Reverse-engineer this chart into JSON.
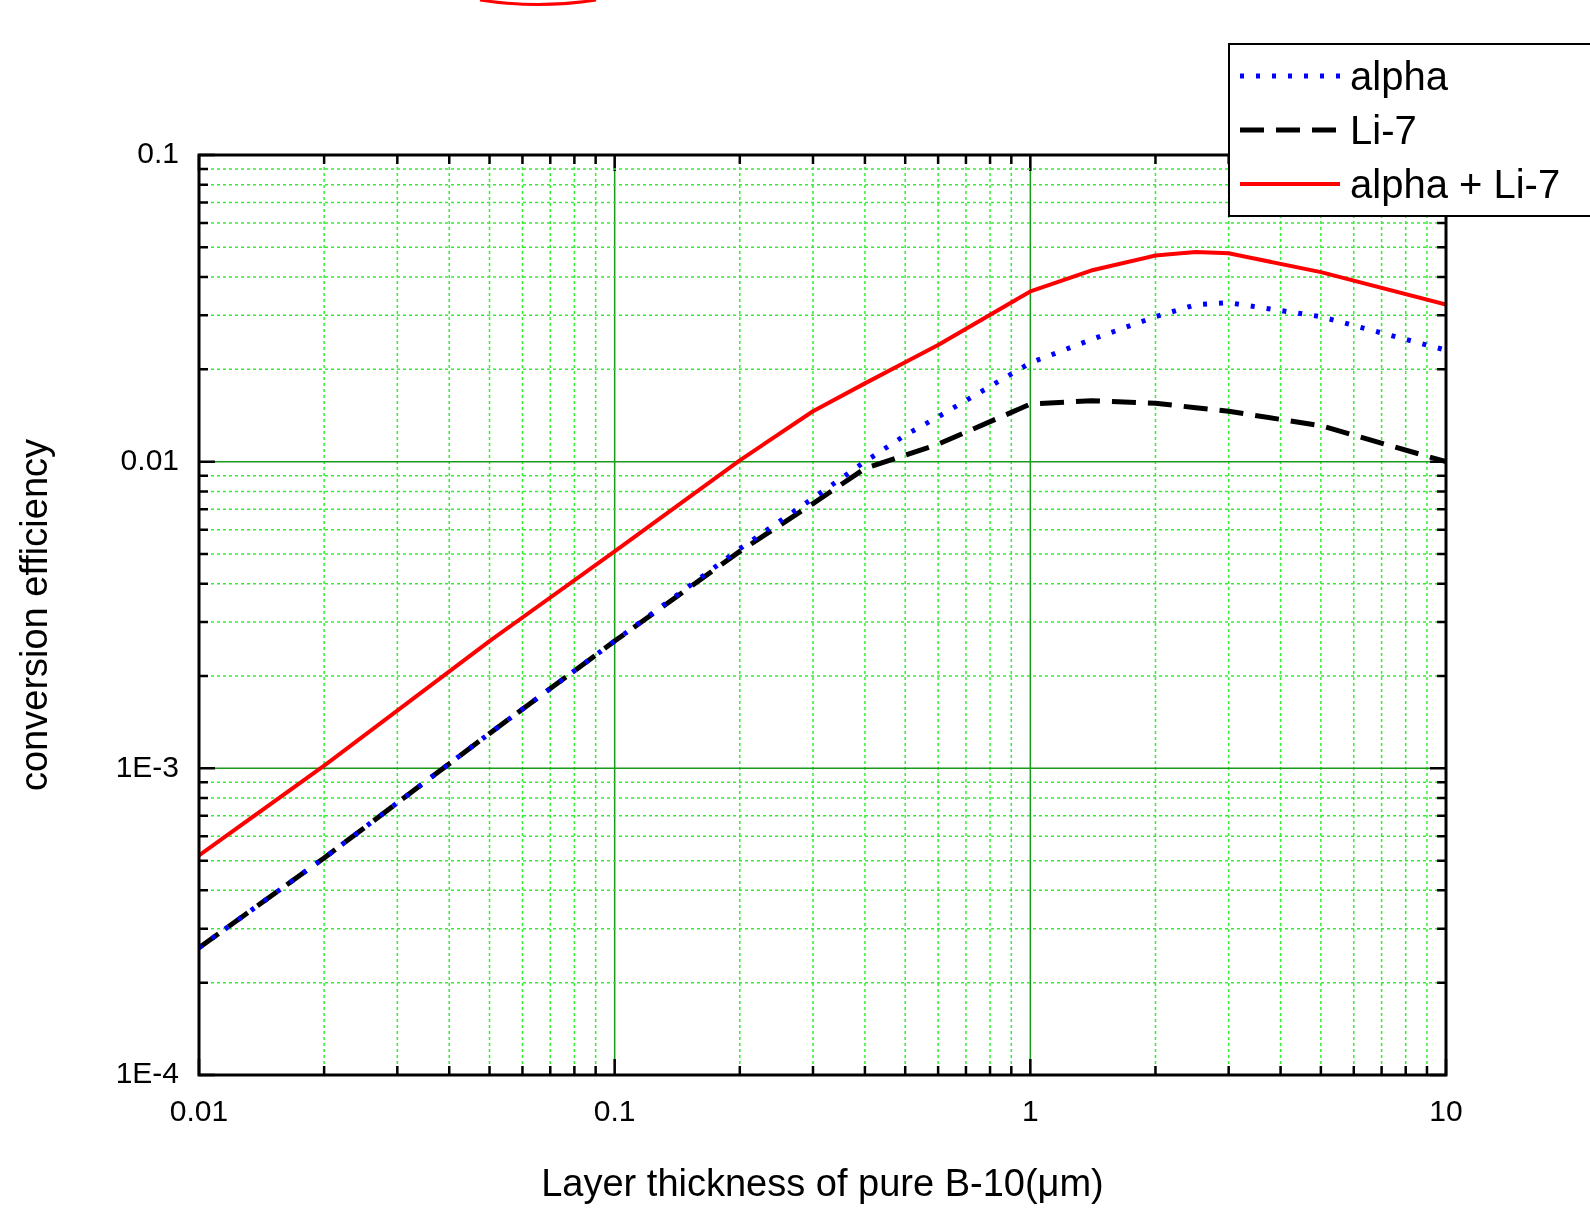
{
  "chart_data": {
    "type": "line",
    "xlabel": "Layer thickness of pure B-10(μm)",
    "ylabel": "conversion efficiency",
    "log": "xy",
    "grid": true,
    "legend": "top right",
    "marker": "none",
    "xlim": [
      0.01,
      10
    ],
    "ylim": [
      0.0001,
      0.1
    ],
    "xticks": [
      0.01,
      {
        "value": 0.02,
        "label": null
      },
      {
        "value": 0.03,
        "label": null
      },
      {
        "value": 0.04,
        "label": null
      },
      {
        "value": 0.05,
        "label": null
      },
      {
        "value": 0.06,
        "label": null
      },
      {
        "value": 0.07,
        "label": null
      },
      {
        "value": 0.08,
        "label": null
      },
      {
        "value": 0.09,
        "label": null
      },
      0.1,
      {
        "value": 0.2,
        "label": null
      },
      {
        "value": 0.3,
        "label": null
      },
      {
        "value": 0.4,
        "label": null
      },
      {
        "value": 0.5,
        "label": null
      },
      {
        "value": 0.6,
        "label": null
      },
      {
        "value": 0.7,
        "label": null
      },
      {
        "value": 0.8,
        "label": null
      },
      {
        "value": 0.9,
        "label": null
      },
      1,
      {
        "value": 2,
        "label": null
      },
      {
        "value": 3,
        "label": null
      },
      {
        "value": 4,
        "label": null
      },
      {
        "value": 5,
        "label": null
      },
      {
        "value": 6,
        "label": null
      },
      {
        "value": 7,
        "label": null
      },
      {
        "value": 8,
        "label": null
      },
      {
        "value": 9,
        "label": null
      },
      10
    ],
    "yticks": [
      {
        "value": 0.0001,
        "label": "1E-4"
      },
      {
        "value": 0.0002,
        "label": null
      },
      {
        "value": 0.0003,
        "label": null
      },
      {
        "value": 0.0004,
        "label": null
      },
      {
        "value": 0.0005,
        "label": null
      },
      {
        "value": 0.0006,
        "label": null
      },
      {
        "value": 0.0007,
        "label": null
      },
      {
        "value": 0.0008,
        "label": null
      },
      {
        "value": 0.0009,
        "label": null
      },
      {
        "value": 0.001,
        "label": "1E-3"
      },
      {
        "value": 0.002,
        "label": null
      },
      {
        "value": 0.003,
        "label": null
      },
      {
        "value": 0.004,
        "label": null
      },
      {
        "value": 0.005,
        "label": null
      },
      {
        "value": 0.006,
        "label": null
      },
      {
        "value": 0.007,
        "label": null
      },
      {
        "value": 0.008,
        "label": null
      },
      {
        "value": 0.009,
        "label": null
      },
      0.01,
      {
        "value": 0.02,
        "label": null
      },
      {
        "value": 0.03,
        "label": null
      },
      {
        "value": 0.04,
        "label": null
      },
      {
        "value": 0.05,
        "label": null
      },
      {
        "value": 0.06,
        "label": null
      },
      {
        "value": 0.07,
        "label": null
      },
      {
        "value": 0.08,
        "label": null
      },
      {
        "value": 0.09,
        "label": null
      },
      0.1
    ],
    "x": [
      0.01,
      0.02,
      0.05,
      0.1,
      0.2,
      0.3,
      0.4,
      0.5,
      0.6,
      1,
      1.4,
      2,
      2.5,
      3,
      5,
      10
    ],
    "series": [
      {
        "name": "alpha",
        "color": "#0000ff",
        "line_style": "dotted",
        "values": [
          0.00026,
          0.00051,
          0.0013,
          0.0026,
          0.0052,
          0.0076,
          0.01,
          0.0122,
          0.014,
          0.021,
          0.025,
          0.0297,
          0.0325,
          0.033,
          0.0297,
          0.0231
        ]
      },
      {
        "name": "Li-7",
        "color": "#000000",
        "line_style": "dashed",
        "values": [
          0.00026,
          0.00051,
          0.0013,
          0.0026,
          0.0051,
          0.0073,
          0.0095,
          0.0105,
          0.0114,
          0.0154,
          0.0158,
          0.0155,
          0.015,
          0.0146,
          0.0131,
          0.01
        ]
      },
      {
        "name": "alpha + Li-7",
        "color": "#ff0000",
        "line_style": "solid",
        "values": [
          0.00052,
          0.00102,
          0.0026,
          0.0051,
          0.0101,
          0.0146,
          0.018,
          0.0211,
          0.024,
          0.0359,
          0.042,
          0.047,
          0.0483,
          0.0478,
          0.0415,
          0.0325
        ]
      }
    ]
  }
}
